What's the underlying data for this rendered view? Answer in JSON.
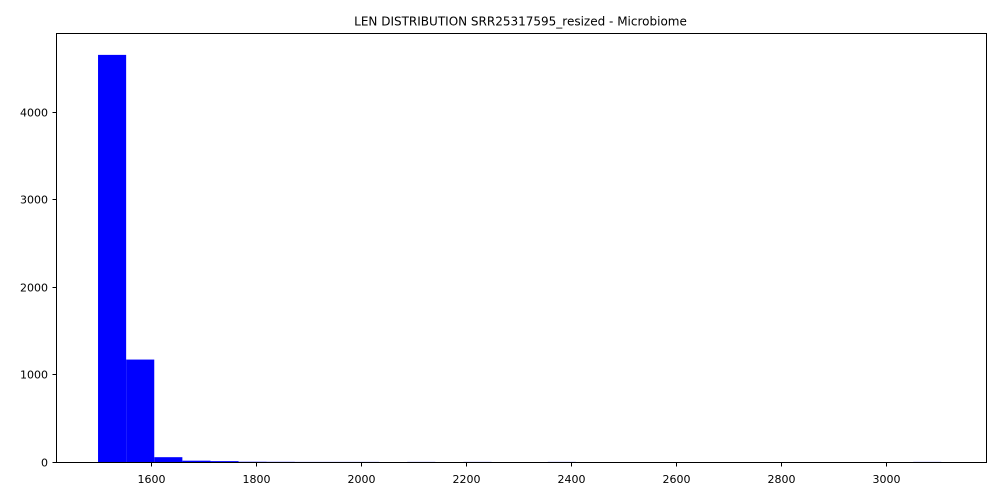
{
  "chart_data": {
    "type": "bar",
    "title": "LEN DISTRIBUTION SRR25317595_resized - Microbiome",
    "xlabel": "",
    "ylabel": "",
    "xlim": [
      1420,
      3190
    ],
    "ylim": [
      0,
      4900
    ],
    "xticks": [
      1600,
      1800,
      2000,
      2200,
      2400,
      2600,
      2800,
      3000
    ],
    "yticks": [
      0,
      1000,
      2000,
      3000,
      4000
    ],
    "bin_edges": [
      1500,
      1553.5,
      1607,
      1660.5,
      1714,
      1767.5,
      1821,
      1874.5,
      1928,
      1981.5,
      2035,
      2088.5,
      2142,
      2195.5,
      2249,
      2302.5,
      2356,
      2409.5,
      2463,
      2516.5,
      2570,
      2623.5,
      2677,
      2730.5,
      2784,
      2837.5,
      2891,
      2944.5,
      2998,
      3051.5,
      3105
    ],
    "counts": [
      4650,
      1170,
      55,
      15,
      10,
      3,
      2,
      1,
      1,
      1,
      0,
      1,
      0,
      1,
      0,
      0,
      1,
      0,
      0,
      0,
      0,
      0,
      0,
      0,
      0,
      0,
      0,
      0,
      0,
      1
    ],
    "bar_color": "#0000ff",
    "grid": false,
    "legend": "none"
  }
}
